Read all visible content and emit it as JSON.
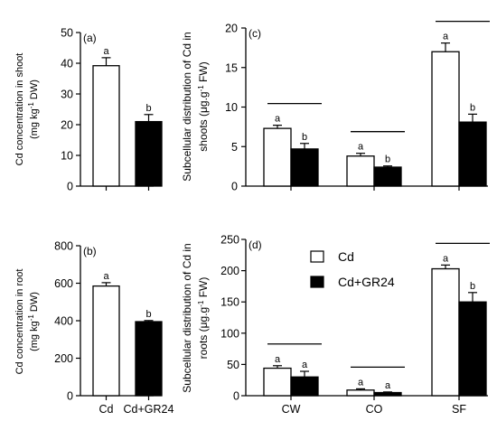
{
  "chart_data": [
    {
      "panel": "(a)",
      "type": "bar",
      "ylabel_lines": [
        "Cd concentration in shoot",
        "(mg kg^-1 DW)"
      ],
      "ylim": [
        0,
        50
      ],
      "yticks": [
        0,
        10,
        20,
        30,
        40,
        50
      ],
      "categories": [
        "Cd",
        "Cd+GR24"
      ],
      "show_xlabels": false,
      "values": [
        39.2,
        21.0
      ],
      "errors": [
        2.6,
        2.3
      ],
      "letters": [
        "a",
        "b"
      ],
      "fills": [
        "#ffffff",
        "#000000"
      ]
    },
    {
      "panel": "(b)",
      "type": "bar",
      "ylabel_lines": [
        "Cd concentration in root",
        "(mg kg^-1 DW)"
      ],
      "ylim": [
        0,
        800
      ],
      "yticks": [
        0,
        200,
        400,
        600,
        800
      ],
      "categories": [
        "Cd",
        "Cd+GR24"
      ],
      "show_xlabels": true,
      "values": [
        585,
        395
      ],
      "errors": [
        18,
        6
      ],
      "letters": [
        "a",
        "b"
      ],
      "fills": [
        "#ffffff",
        "#000000"
      ]
    },
    {
      "panel": "(c)",
      "type": "bar",
      "ylabel_lines": [
        "Subcellular distribution of Cd in",
        "shoots (μg.g^-1 FW)"
      ],
      "ylim": [
        0,
        20
      ],
      "yticks": [
        0,
        5,
        10,
        15,
        20
      ],
      "categories": [
        "CW",
        "CO",
        "SF"
      ],
      "show_xlabels": false,
      "series": [
        {
          "name": "Cd",
          "values": [
            7.3,
            3.8,
            17.0
          ],
          "errors": [
            0.4,
            0.35,
            1.1
          ],
          "letters": [
            "a",
            "a",
            "a"
          ],
          "fill": "#ffffff"
        },
        {
          "name": "Cd+GR24",
          "values": [
            4.7,
            2.4,
            8.1
          ],
          "errors": [
            0.7,
            0.15,
            1.0
          ],
          "letters": [
            "b",
            "b",
            "b"
          ],
          "fill": "#000000"
        }
      ],
      "brackets": true
    },
    {
      "panel": "(d)",
      "type": "bar",
      "ylabel_lines": [
        "Subcellular distribution of Cd in",
        "roots (μg.g^-1 FW)"
      ],
      "ylim": [
        0,
        250
      ],
      "yticks": [
        0,
        50,
        100,
        150,
        200,
        250
      ],
      "categories": [
        "CW",
        "CO",
        "SF"
      ],
      "show_xlabels": true,
      "series": [
        {
          "name": "Cd",
          "values": [
            44,
            9,
            203
          ],
          "errors": [
            4,
            2,
            6
          ],
          "letters": [
            "a",
            "a",
            "a"
          ],
          "fill": "#ffffff"
        },
        {
          "name": "Cd+GR24",
          "values": [
            30,
            5,
            150
          ],
          "errors": [
            9,
            1,
            15
          ],
          "letters": [
            "a",
            "a",
            "b"
          ],
          "fill": "#000000"
        }
      ],
      "brackets": true,
      "legend": {
        "placement": "top-center",
        "entries": [
          "Cd",
          "Cd+GR24"
        ]
      }
    }
  ]
}
